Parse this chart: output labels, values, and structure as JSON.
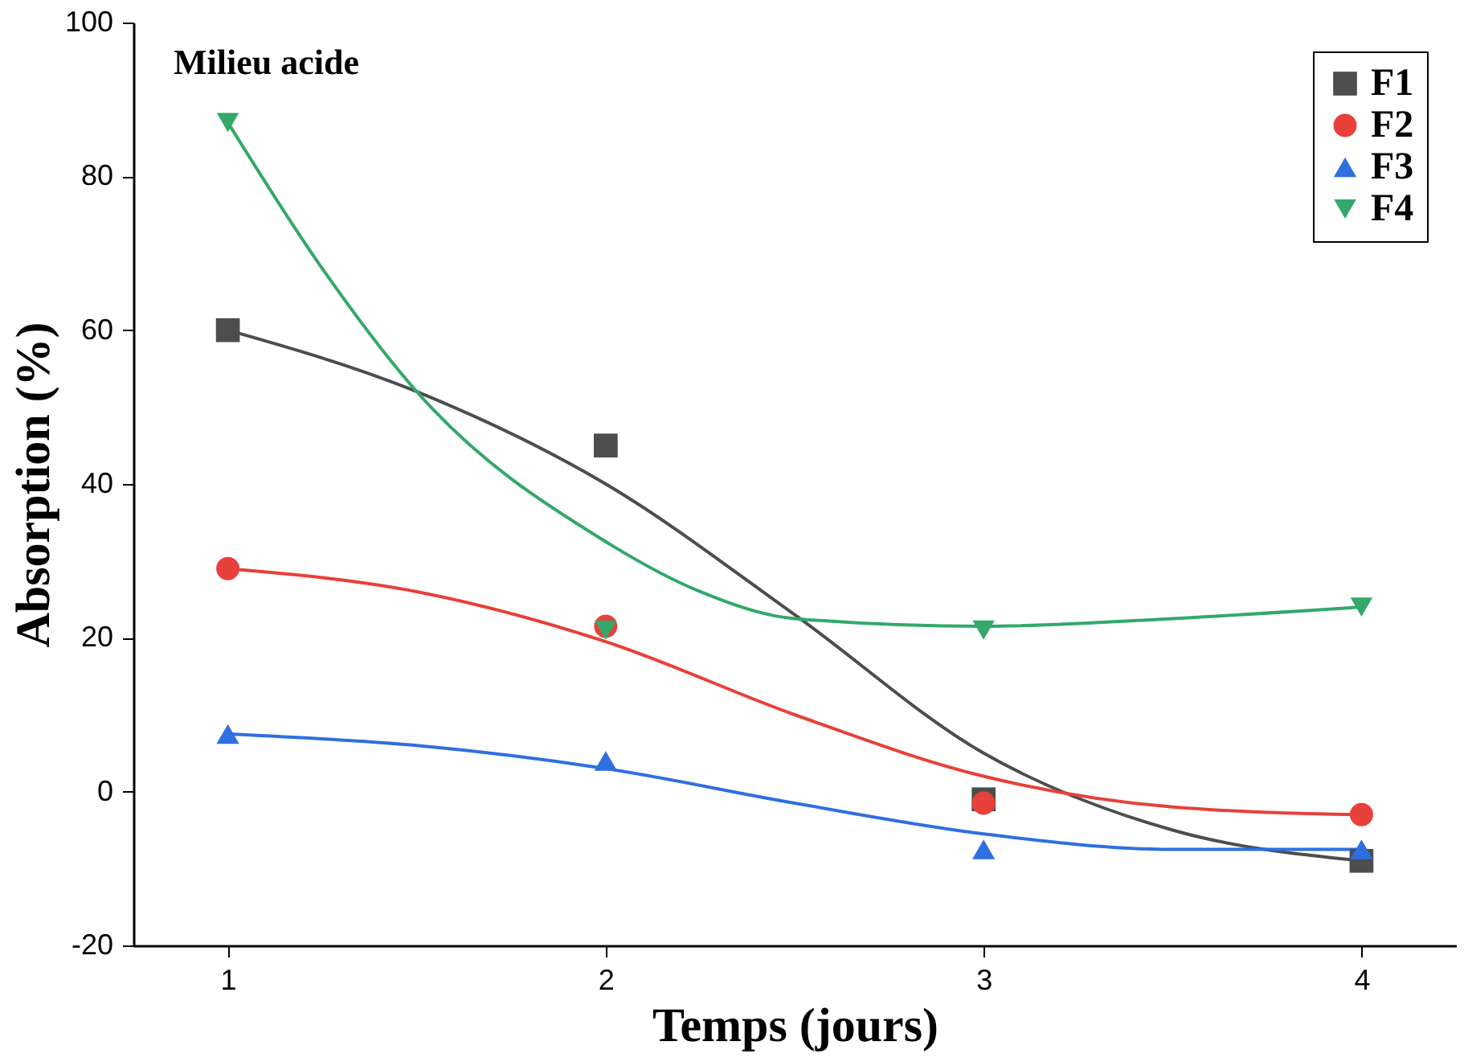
{
  "chart_data": {
    "type": "scatter",
    "xlabel": "Temps (jours)",
    "ylabel": "Absorption (%)",
    "annotations": [
      "Milieu acide"
    ],
    "xlim": [
      0.75,
      4.25
    ],
    "xticks": [
      1,
      2,
      3,
      4
    ],
    "ylim": [
      -20,
      100
    ],
    "yticks": [
      -20,
      0,
      20,
      40,
      60,
      80,
      100
    ],
    "grid": false,
    "legend": "top right",
    "series": [
      {
        "name": "F1",
        "color": "#4d4d4d",
        "marker": "square",
        "x": [
          1,
          2,
          3,
          4
        ],
        "values": [
          60,
          45,
          -1,
          -9
        ]
      },
      {
        "name": "F2",
        "color": "#e8403a",
        "marker": "circle",
        "x": [
          1,
          2,
          3,
          4
        ],
        "values": [
          29,
          21.5,
          -1.5,
          -3
        ]
      },
      {
        "name": "F3",
        "color": "#2f6fe0",
        "marker": "triangle",
        "x": [
          1,
          2,
          3,
          4
        ],
        "values": [
          7.5,
          4,
          -7.5,
          -7.5
        ]
      },
      {
        "name": "F4",
        "color": "#33a86a",
        "marker": "triangle-down",
        "x": [
          1,
          2,
          3,
          4
        ],
        "values": [
          87,
          21,
          21,
          24
        ]
      },
      {
        "type": "line",
        "color": "#4d4d4d",
        "x": [
          1,
          1.5,
          2,
          2.5,
          3,
          3.5,
          4
        ],
        "values": [
          60,
          52,
          40,
          23,
          5,
          -5,
          -9
        ]
      },
      {
        "type": "line",
        "color": "#e8403a",
        "x": [
          1,
          1.5,
          2,
          2.5,
          3,
          3.5,
          4
        ],
        "values": [
          29,
          26,
          19.5,
          10,
          2,
          -2,
          -3
        ]
      },
      {
        "type": "line",
        "color": "#2f6fe0",
        "x": [
          1,
          1.5,
          2,
          2.5,
          3,
          3.5,
          4
        ],
        "values": [
          7.5,
          6,
          3,
          -1.5,
          -5.5,
          -7.5,
          -7.5
        ]
      },
      {
        "type": "line",
        "color": "#33a86a",
        "x": [
          1,
          1.25,
          1.5,
          2,
          2.25,
          2.5,
          3,
          3.5,
          4
        ],
        "values": [
          87,
          68,
          52,
          32.5,
          26,
          22.5,
          21.5,
          22.5,
          24
        ]
      }
    ]
  }
}
